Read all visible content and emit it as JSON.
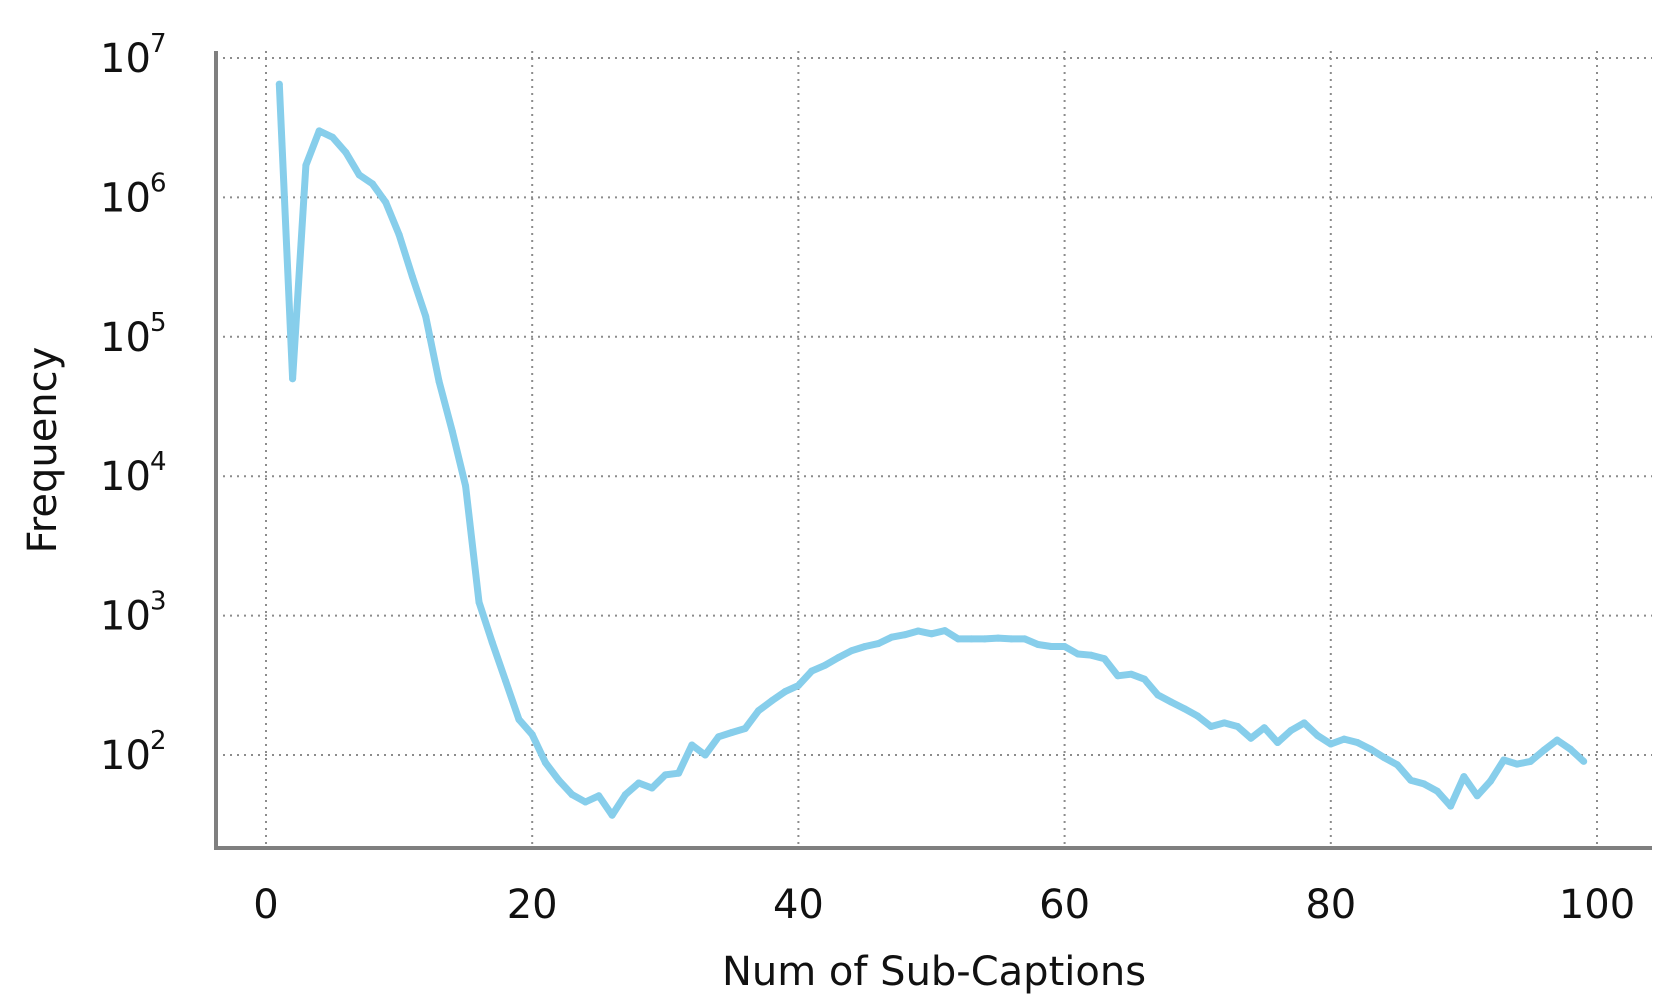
{
  "chart_data": {
    "type": "line",
    "title": "",
    "xlabel": "Num of Sub-Captions",
    "ylabel": "Frequency",
    "yscale": "log",
    "xlim": [
      -4,
      104
    ],
    "ylim": [
      20,
      10000000
    ],
    "grid": true,
    "x_ticks": [
      {
        "value": 0,
        "label": "0"
      },
      {
        "value": 20,
        "label": "20"
      },
      {
        "value": 40,
        "label": "40"
      },
      {
        "value": 60,
        "label": "60"
      },
      {
        "value": 80,
        "label": "80"
      },
      {
        "value": 100,
        "label": "100"
      }
    ],
    "y_ticks": [
      {
        "value": 100,
        "base": "10",
        "exp": "2"
      },
      {
        "value": 1000,
        "base": "10",
        "exp": "3"
      },
      {
        "value": 10000,
        "base": "10",
        "exp": "4"
      },
      {
        "value": 100000,
        "base": "10",
        "exp": "5"
      },
      {
        "value": 1000000,
        "base": "10",
        "exp": "6"
      },
      {
        "value": 10000000,
        "base": "10",
        "exp": "7"
      }
    ],
    "series": [
      {
        "color": "#87ceeb",
        "x": [
          1,
          2,
          3,
          4,
          5,
          6,
          7,
          8,
          9,
          10,
          11,
          12,
          13,
          14,
          15,
          16,
          17,
          18,
          19,
          20,
          21,
          22,
          23,
          24,
          25,
          26,
          27,
          28,
          29,
          30,
          31,
          32,
          33,
          34,
          35,
          36,
          37,
          38,
          39,
          40,
          41,
          42,
          43,
          44,
          45,
          46,
          47,
          48,
          49,
          50,
          51,
          52,
          53,
          54,
          55,
          56,
          57,
          58,
          59,
          60,
          61,
          62,
          63,
          64,
          65,
          66,
          67,
          68,
          69,
          70,
          71,
          72,
          73,
          74,
          75,
          76,
          77,
          78,
          79,
          80,
          81,
          82,
          83,
          84,
          85,
          86,
          87,
          88,
          89,
          90,
          91,
          92,
          93,
          94,
          95,
          96,
          97,
          98,
          99
        ],
        "y": [
          6500000,
          50000,
          1700000,
          3000000,
          2700000,
          2100000,
          1450000,
          1250000,
          920000,
          540000,
          270000,
          140000,
          48000,
          21000,
          8500,
          1250,
          640,
          340,
          180,
          140,
          88,
          66,
          52,
          46,
          51,
          37,
          52,
          63,
          58,
          72,
          74,
          118,
          100,
          135,
          145,
          155,
          208,
          245,
          285,
          315,
          400,
          440,
          500,
          560,
          600,
          630,
          700,
          730,
          775,
          740,
          780,
          680,
          680,
          680,
          690,
          680,
          680,
          620,
          600,
          600,
          530,
          520,
          490,
          370,
          380,
          350,
          270,
          240,
          215,
          190,
          160,
          170,
          160,
          132,
          157,
          123,
          150,
          170,
          138,
          120,
          130,
          123,
          110,
          96,
          85,
          66,
          62,
          55,
          43,
          70,
          51,
          65,
          92,
          86,
          90,
          108,
          128,
          110,
          90
        ]
      }
    ]
  }
}
